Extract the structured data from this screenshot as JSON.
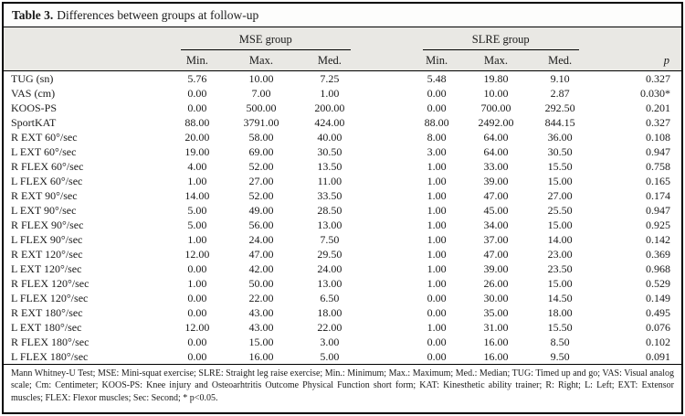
{
  "colors": {
    "border": "#000000",
    "header_band": "#e9e8e4",
    "text": "#1a1a1a"
  },
  "title": {
    "label": "Table 3.",
    "text": "Differences between groups at follow-up"
  },
  "header": {
    "group_mse": "MSE group",
    "group_slre": "SLRE group",
    "min": "Min.",
    "max": "Max.",
    "med": "Med.",
    "p": "p"
  },
  "rows": [
    {
      "label": "TUG (sn)",
      "values": [
        "5.76",
        "10.00",
        "7.25",
        "5.48",
        "19.80",
        "9.10",
        "0.327"
      ]
    },
    {
      "label": "VAS (cm)",
      "values": [
        "0.00",
        "7.00",
        "1.00",
        "0.00",
        "10.00",
        "2.87",
        "0.030*"
      ]
    },
    {
      "label": "KOOS-PS",
      "values": [
        "0.00",
        "500.00",
        "200.00",
        "0.00",
        "700.00",
        "292.50",
        "0.201"
      ]
    },
    {
      "label": "SportKAT",
      "values": [
        "88.00",
        "3791.00",
        "424.00",
        "88.00",
        "2492.00",
        "844.15",
        "0.327"
      ]
    },
    {
      "label": "R EXT 60°/sec",
      "values": [
        "20.00",
        "58.00",
        "40.00",
        "8.00",
        "64.00",
        "36.00",
        "0.108"
      ]
    },
    {
      "label": "L EXT 60°/sec",
      "values": [
        "19.00",
        "69.00",
        "30.50",
        "3.00",
        "64.00",
        "30.50",
        "0.947"
      ]
    },
    {
      "label": "R FLEX 60°/sec",
      "values": [
        "4.00",
        "52.00",
        "13.50",
        "1.00",
        "33.00",
        "15.50",
        "0.758"
      ]
    },
    {
      "label": "L FLEX 60°/sec",
      "values": [
        "1.00",
        "27.00",
        "11.00",
        "1.00",
        "39.00",
        "15.00",
        "0.165"
      ]
    },
    {
      "label": "R EXT 90°/sec",
      "values": [
        "14.00",
        "52.00",
        "33.50",
        "1.00",
        "47.00",
        "27.00",
        "0.174"
      ]
    },
    {
      "label": "L EXT 90°/sec",
      "values": [
        "5.00",
        "49.00",
        "28.50",
        "1.00",
        "45.00",
        "25.50",
        "0.947"
      ]
    },
    {
      "label": "R FLEX 90°/sec",
      "values": [
        "5.00",
        "56.00",
        "13.00",
        "1.00",
        "34.00",
        "15.00",
        "0.925"
      ]
    },
    {
      "label": "L FLEX 90°/sec",
      "values": [
        "1.00",
        "24.00",
        "7.50",
        "1.00",
        "37.00",
        "14.00",
        "0.142"
      ]
    },
    {
      "label": "R EXT 120°/sec",
      "values": [
        "12.00",
        "47.00",
        "29.50",
        "1.00",
        "47.00",
        "23.00",
        "0.369"
      ]
    },
    {
      "label": "L EXT 120°/sec",
      "values": [
        "0.00",
        "42.00",
        "24.00",
        "1.00",
        "39.00",
        "23.50",
        "0.968"
      ]
    },
    {
      "label": "R FLEX 120°/sec",
      "values": [
        "1.00",
        "50.00",
        "13.00",
        "1.00",
        "26.00",
        "15.00",
        "0.529"
      ]
    },
    {
      "label": "L FLEX 120°/sec",
      "values": [
        "0.00",
        "22.00",
        "6.50",
        "0.00",
        "30.00",
        "14.50",
        "0.149"
      ]
    },
    {
      "label": "R EXT 180°/sec",
      "values": [
        "0.00",
        "43.00",
        "18.00",
        "0.00",
        "35.00",
        "18.00",
        "0.495"
      ]
    },
    {
      "label": "L EXT 180°/sec",
      "values": [
        "12.00",
        "43.00",
        "22.00",
        "1.00",
        "31.00",
        "15.50",
        "0.076"
      ]
    },
    {
      "label": "R FLEX 180°/sec",
      "values": [
        "0.00",
        "15.00",
        "3.00",
        "0.00",
        "16.00",
        "8.50",
        "0.102"
      ]
    },
    {
      "label": "L FLEX 180°/sec",
      "values": [
        "0.00",
        "16.00",
        "5.00",
        "0.00",
        "16.00",
        "9.50",
        "0.091"
      ]
    }
  ],
  "footnote": "Mann Whitney-U Test; MSE: Mini-squat exercise; SLRE: Straight leg raise exercise; Min.: Minimum; Max.: Maximum; Med.: Median; TUG: Timed up and go; VAS: Visual analog scale; Cm: Centimeter; KOOS-PS: Knee injury and Osteoarhtritis Outcome Physical Function short form; KAT: Kinesthetic ability trainer; R: Right; L: Left; EXT: Extensor muscles; FLEX: Flexor muscles; Sec: Second; * p<0.05."
}
